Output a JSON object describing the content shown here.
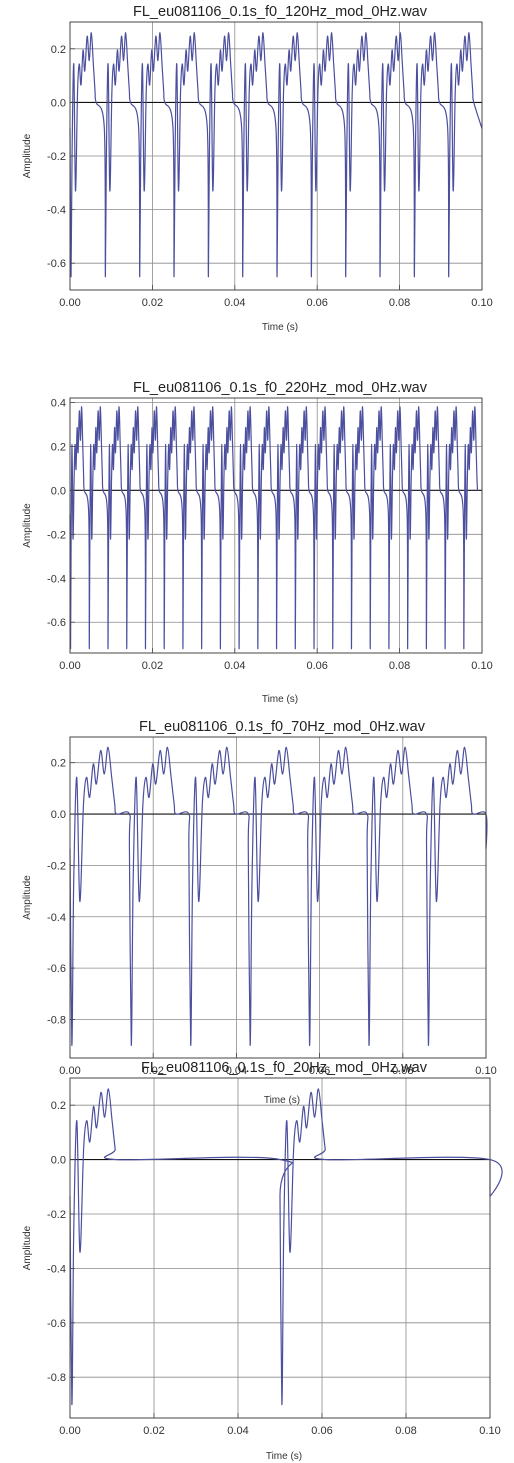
{
  "chart_data": [
    {
      "type": "line",
      "title": "FL_eu081106_0.1s_f0_120Hz_mod_0Hz.wav",
      "xlabel": "Time (s)",
      "ylabel": "Amplitude",
      "xlim": [
        0,
        0.1
      ],
      "ylim": [
        -0.7,
        0.3
      ],
      "x_ticks": [
        0,
        0.02,
        0.04,
        0.06,
        0.08,
        0.1
      ],
      "x_tick_labels": [
        "0.00",
        "0.02",
        "0.04",
        "0.06",
        "0.08",
        "0.10"
      ],
      "y_ticks": [
        0.2,
        0,
        -0.2,
        -0.4,
        -0.6
      ],
      "y_tick_labels": [
        "0.2",
        "0.0",
        "-0.2",
        "-0.4",
        "-0.6"
      ],
      "grid": true,
      "series": [
        {
          "f0_hz": 120,
          "line_color": "#4b4f9e",
          "period_shape": {
            "min": -0.65,
            "peak": 0.26,
            "dip": -0.33
          },
          "x": [
            0,
            0.0005,
            0.0008333,
            0.0009,
            0.0015,
            0.002,
            0.0025,
            0.003,
            0.0034,
            0.0038,
            0.0042,
            0.0046,
            0.005,
            0.0054,
            0.0058,
            0.0062,
            0.0066,
            0.007,
            0.0075,
            0.0083333,
            0.0125,
            0.0166667,
            0.0208333,
            0.025,
            0.0291667,
            0.0333333,
            0.0375,
            0.0416667,
            0.0458333,
            0.05,
            0.0541667,
            0.0583333,
            0.0625,
            0.0666667,
            0.0708333,
            0.075,
            0.0791667,
            0.0833333,
            0.0875,
            0.0916667,
            0.0958333,
            0.1
          ],
          "y": [
            0.22,
            -0.4,
            -0.65,
            -0.55,
            0.05,
            0.26,
            0.05,
            -0.33,
            -0.05,
            0.12,
            0.02,
            0.14,
            0.06,
            0.2,
            0.1,
            0.24,
            0.18,
            0.14,
            0.1,
            -0.65,
            -0.65,
            -0.65,
            -0.65,
            -0.65,
            -0.65,
            -0.65,
            -0.65,
            -0.65,
            -0.65,
            -0.65,
            -0.65,
            -0.65,
            -0.65,
            -0.65,
            -0.65,
            -0.65,
            -0.65,
            -0.65,
            -0.65,
            -0.65,
            -0.65,
            0.13
          ]
        }
      ]
    },
    {
      "type": "line",
      "title": "FL_eu081106_0.1s_f0_220Hz_mod_0Hz.wav",
      "xlabel": "Time (s)",
      "ylabel": "Amplitude",
      "xlim": [
        0,
        0.1
      ],
      "ylim": [
        -0.74,
        0.42
      ],
      "x_ticks": [
        0,
        0.02,
        0.04,
        0.06,
        0.08,
        0.1
      ],
      "x_tick_labels": [
        "0.00",
        "0.02",
        "0.04",
        "0.06",
        "0.08",
        "0.10"
      ],
      "y_ticks": [
        0.4,
        0.2,
        0,
        -0.2,
        -0.4,
        -0.6
      ],
      "y_tick_labels": [
        "0.4",
        "0.2",
        "0.0",
        "-0.2",
        "-0.4",
        "-0.6"
      ],
      "grid": true,
      "series": [
        {
          "f0_hz": 220,
          "line_color": "#4b4f9e",
          "period_shape": {
            "min": -0.72,
            "peak": 0.38,
            "dip": -0.22
          },
          "x": [
            0,
            0.0045,
            0.0091,
            0.0136,
            0.0182,
            0.0227,
            0.0273,
            0.0318,
            0.0364,
            0.0409,
            0.0455,
            0.05,
            0.0545,
            0.0591,
            0.0636,
            0.0682,
            0.0727,
            0.0773,
            0.0818,
            0.0864,
            0.0909,
            0.0955,
            0.1
          ],
          "y": [
            0.28,
            -0.72,
            -0.72,
            -0.72,
            -0.72,
            -0.72,
            -0.72,
            -0.72,
            -0.72,
            -0.72,
            -0.72,
            -0.72,
            -0.72,
            -0.72,
            -0.72,
            -0.72,
            -0.72,
            -0.72,
            -0.72,
            -0.72,
            -0.72,
            -0.72,
            0.37
          ]
        }
      ]
    },
    {
      "type": "line",
      "title": "FL_eu081106_0.1s_f0_70Hz_mod_0Hz.wav",
      "xlabel": "Time (s)",
      "ylabel": "Amplitude",
      "xlim": [
        0,
        0.1
      ],
      "ylim": [
        -0.95,
        0.3
      ],
      "x_ticks": [
        0,
        0.02,
        0.04,
        0.06,
        0.08,
        0.1
      ],
      "x_tick_labels": [
        "0.00",
        "0.02",
        "0.04",
        "0.06",
        "0.08",
        "0.10"
      ],
      "y_ticks": [
        0.2,
        0,
        -0.2,
        -0.4,
        -0.6,
        -0.8
      ],
      "y_tick_labels": [
        "0.2",
        "0.0",
        "-0.2",
        "-0.4",
        "-0.6",
        "-0.8"
      ],
      "grid": true,
      "series": [
        {
          "f0_hz": 70,
          "line_color": "#4b4f9e",
          "period_shape": {
            "min": -0.9,
            "peak": 0.26,
            "dip": -0.34
          },
          "x": [
            0,
            0.0008,
            0.002,
            0.0035,
            0.008,
            0.0102,
            0.0143,
            0.0286,
            0.0429,
            0.0571,
            0.0714,
            0.0857,
            0.0959,
            0.1
          ],
          "y": [
            -0.12,
            -0.9,
            0.16,
            -0.34,
            0.26,
            0,
            -0.9,
            -0.9,
            -0.9,
            -0.9,
            -0.9,
            -0.9,
            0,
            0
          ]
        }
      ]
    },
    {
      "type": "line",
      "title": "FL_eu081106_0.1s_f0_20Hz_mod_0Hz.wav",
      "xlabel": "Time (s)",
      "ylabel": "Amplitude",
      "xlim": [
        0,
        0.1
      ],
      "ylim": [
        -0.95,
        0.3
      ],
      "x_ticks": [
        0,
        0.02,
        0.04,
        0.06,
        0.08,
        0.1
      ],
      "x_tick_labels": [
        "0.00",
        "0.02",
        "0.04",
        "0.06",
        "0.08",
        "0.10"
      ],
      "y_ticks": [
        0.2,
        0,
        -0.2,
        -0.4,
        -0.6,
        -0.8
      ],
      "y_tick_labels": [
        "0.2",
        "0.0",
        "-0.2",
        "-0.4",
        "-0.6",
        "-0.8"
      ],
      "grid": true,
      "series": [
        {
          "f0_hz": 20,
          "line_color": "#4b4f9e",
          "period_shape": {
            "min": -0.9,
            "peak": 0.26,
            "dip": -0.34
          },
          "x": [
            0,
            0.0008,
            0.002,
            0.0035,
            0.008,
            0.0102,
            0.0112,
            0.0496,
            0.0508,
            0.052,
            0.0535,
            0.058,
            0.0602,
            0.0612,
            0.1
          ],
          "y": [
            -0.12,
            -0.9,
            0.16,
            -0.34,
            0.26,
            0.1,
            0,
            0,
            -0.9,
            0.16,
            -0.34,
            0.26,
            0.1,
            0,
            0
          ]
        }
      ]
    }
  ]
}
